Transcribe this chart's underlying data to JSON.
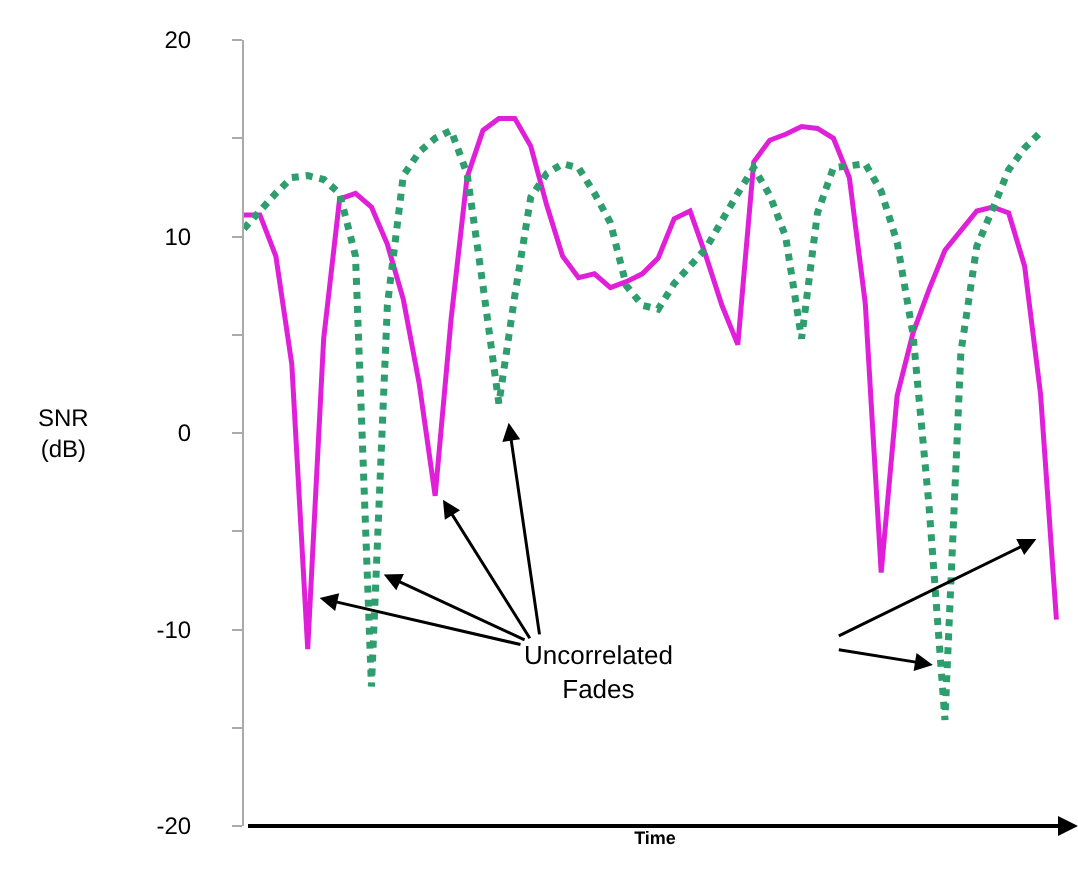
{
  "chart_data": {
    "type": "line",
    "ylabel": "SNR\n(dB)",
    "xlabel": "Time",
    "categories": [
      null,
      null,
      null,
      null,
      null,
      null,
      null,
      null,
      null,
      null,
      null,
      null,
      null,
      null,
      null,
      null,
      null,
      null,
      null,
      null,
      null,
      null,
      null,
      null,
      null,
      null,
      null,
      null,
      null,
      null,
      null,
      null,
      null,
      null,
      null,
      null,
      null,
      null,
      null,
      null,
      null,
      null,
      null,
      null,
      null,
      null,
      null,
      null,
      null,
      null,
      null,
      null
    ],
    "ylim": [
      -20,
      20
    ],
    "yticks": [
      -20,
      {
        "value": -15,
        "label": null
      },
      -10,
      {
        "value": -5,
        "label": null
      },
      0,
      {
        "value": 5,
        "label": null
      },
      10,
      {
        "value": 15,
        "label": null
      },
      20
    ],
    "tick_labels": "y",
    "grid": false,
    "annotations": [
      "Uncorrelated\nFades"
    ],
    "series": [
      {
        "color": "#e020d8",
        "line_style": "solid",
        "values": [
          11.1,
          11.1,
          9.0,
          3.5,
          -11,
          4.8,
          11.9,
          12.2,
          11.5,
          9.6,
          6.8,
          2.5,
          -3.2,
          5.8,
          13,
          15.4,
          16,
          16,
          14.6,
          11.6,
          9.0,
          7.9,
          8.1,
          7.4,
          7.7,
          8.1,
          8.9,
          10.9,
          11.3,
          9.0,
          6.5,
          4.5,
          13.8,
          14.9,
          15.2,
          15.6,
          15.5,
          15,
          13,
          6.6,
          -7.1,
          1.9,
          5.1,
          7.3,
          9.3,
          10.3,
          11.3,
          11.5,
          11.2,
          8.5,
          2,
          -9.5
        ]
      },
      {
        "color": "#2e9e6e",
        "line_style": "dotted",
        "values": [
          10.4,
          11.3,
          12.2,
          13,
          13.1,
          12.9,
          12.2,
          9,
          -12.9,
          6.5,
          13.1,
          14.3,
          15,
          15.4,
          13.2,
          7.5,
          1.5,
          7,
          12,
          13.2,
          13.7,
          13.5,
          12.2,
          10.7,
          7.5,
          6.5,
          6.3,
          7.6,
          8.5,
          9.4,
          10.8,
          12.2,
          13.5,
          12.1,
          10,
          4.8,
          11.2,
          13.5,
          13.6,
          13.7,
          12.3,
          9.7,
          5,
          -3.7,
          -14.6,
          4.1,
          9.5,
          11.4,
          13.4,
          14.5,
          15.3,
          null
        ]
      }
    ]
  }
}
